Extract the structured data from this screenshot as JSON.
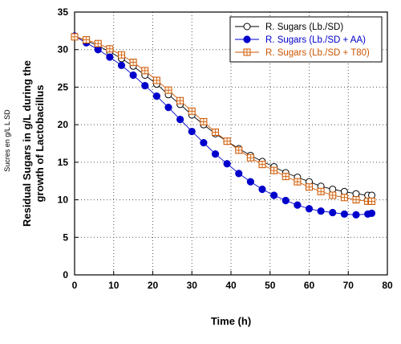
{
  "chart_data": {
    "type": "line",
    "xlabel": "Time (h)",
    "ylabel_lines": [
      "Residual Sugars in g/L during the",
      "growth of Lactobacillus"
    ],
    "side_note": "Sucres en g/L L SD",
    "xlim": [
      0,
      80
    ],
    "ylim": [
      0,
      35
    ],
    "x_ticks": [
      0,
      10,
      20,
      30,
      40,
      50,
      60,
      70,
      80
    ],
    "y_ticks": [
      0,
      5,
      10,
      15,
      20,
      25,
      30,
      35
    ],
    "grid": true,
    "legend_position": "top-right",
    "series": [
      {
        "name": "R. Sugars (Lb./SD)",
        "color": "#000000",
        "marker": "open-circle",
        "x": [
          0,
          3,
          6,
          9,
          12,
          15,
          18,
          21,
          24,
          27,
          30,
          33,
          36,
          39,
          42,
          45,
          48,
          51,
          54,
          57,
          60,
          63,
          66,
          69,
          72,
          75,
          76
        ],
        "y": [
          31.8,
          31.2,
          30.5,
          29.7,
          28.8,
          27.8,
          26.6,
          25.4,
          24.0,
          22.7,
          21.3,
          20.0,
          18.8,
          17.8,
          16.8,
          15.9,
          15.1,
          14.4,
          13.6,
          13.0,
          12.4,
          11.8,
          11.4,
          11.1,
          10.8,
          10.6,
          10.6
        ]
      },
      {
        "name": "R. Sugars (Lb./SD + AA)",
        "color": "#0000cc",
        "marker": "filled-circle",
        "x": [
          0,
          3,
          6,
          9,
          12,
          15,
          18,
          21,
          24,
          27,
          30,
          33,
          36,
          39,
          42,
          45,
          48,
          51,
          54,
          57,
          60,
          63,
          66,
          69,
          72,
          75,
          76
        ],
        "y": [
          31.8,
          30.9,
          30.0,
          29.0,
          27.9,
          26.6,
          25.2,
          23.8,
          22.3,
          20.7,
          19.1,
          17.6,
          16.1,
          14.8,
          13.5,
          12.4,
          11.4,
          10.6,
          9.9,
          9.3,
          8.8,
          8.5,
          8.3,
          8.1,
          8.0,
          8.1,
          8.2
        ]
      },
      {
        "name": "R. Sugars (Lb./SD + T80)",
        "color": "#cc5500",
        "marker": "open-square-cross",
        "x": [
          0,
          3,
          6,
          9,
          12,
          15,
          18,
          21,
          24,
          27,
          30,
          33,
          36,
          39,
          42,
          45,
          48,
          51,
          54,
          57,
          60,
          63,
          66,
          69,
          72,
          75,
          76
        ],
        "y": [
          31.7,
          31.3,
          30.8,
          30.1,
          29.3,
          28.3,
          27.2,
          25.9,
          24.6,
          23.2,
          21.8,
          20.4,
          19.0,
          17.8,
          16.6,
          15.6,
          14.7,
          13.9,
          13.1,
          12.4,
          11.7,
          11.1,
          10.6,
          10.3,
          10.0,
          9.8,
          9.8
        ]
      }
    ]
  }
}
